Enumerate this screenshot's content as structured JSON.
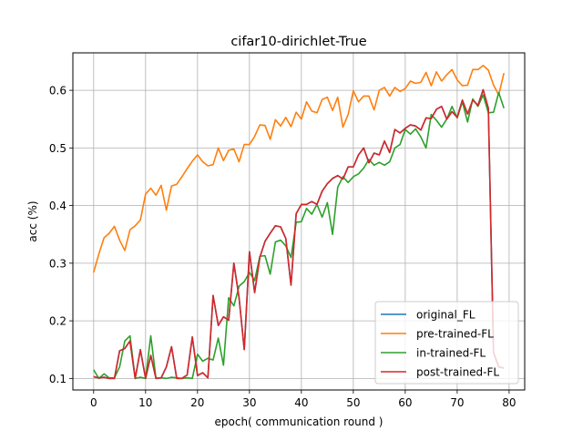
{
  "chart_data": {
    "type": "line",
    "title": "cifar10-dirichlet-True",
    "xlabel": "epoch( communication round )",
    "ylabel": "acc (%)",
    "xlim": [
      -4,
      83
    ],
    "ylim": [
      0.08,
      0.665
    ],
    "xticks": [
      0,
      10,
      20,
      30,
      40,
      50,
      60,
      70,
      80
    ],
    "yticks": [
      0.1,
      0.2,
      0.3,
      0.4,
      0.5,
      0.6
    ],
    "ytick_labels": [
      "0.1",
      "0.2",
      "0.3",
      "0.4",
      "0.5",
      "0.6"
    ],
    "grid": true,
    "legend_position": "lower-right",
    "series": [
      {
        "name": "original_FL",
        "color": "#1f77b4",
        "values": [
          0.103,
          0.101,
          0.102,
          0.1,
          0.1,
          0.148,
          0.152,
          0.165,
          0.1,
          0.15,
          0.1,
          0.14,
          0.1,
          0.101,
          0.12,
          0.155,
          0.1,
          0.1,
          0.106,
          0.172,
          0.105,
          0.11,
          0.101,
          0.244,
          0.192,
          0.207,
          0.201,
          0.3,
          0.24,
          0.15,
          0.32,
          0.249,
          0.31,
          0.338,
          0.352,
          0.365,
          0.363,
          0.343,
          0.262,
          0.386,
          0.402,
          0.402,
          0.407,
          0.402,
          0.425,
          0.438,
          0.447,
          0.452,
          0.446,
          0.467,
          0.467,
          0.488,
          0.5,
          0.474,
          0.491,
          0.488,
          0.512,
          0.492,
          0.532,
          0.526,
          0.534,
          0.54,
          0.538,
          0.531,
          0.552,
          0.551,
          0.567,
          0.572,
          0.55,
          0.563,
          0.553,
          0.583,
          0.559,
          0.583,
          0.574,
          0.601,
          0.569,
          0.145,
          0.12,
          0.118
        ]
      },
      {
        "name": "pre-trained-FL",
        "color": "#ff7f0e",
        "values": [
          0.284,
          0.316,
          0.344,
          0.352,
          0.364,
          0.34,
          0.322,
          0.358,
          0.365,
          0.375,
          0.42,
          0.43,
          0.418,
          0.435,
          0.392,
          0.434,
          0.437,
          0.45,
          0.464,
          0.477,
          0.488,
          0.476,
          0.469,
          0.471,
          0.5,
          0.478,
          0.496,
          0.498,
          0.476,
          0.506,
          0.506,
          0.52,
          0.54,
          0.539,
          0.515,
          0.549,
          0.538,
          0.553,
          0.537,
          0.562,
          0.55,
          0.58,
          0.564,
          0.561,
          0.584,
          0.588,
          0.565,
          0.588,
          0.536,
          0.558,
          0.599,
          0.58,
          0.59,
          0.59,
          0.566,
          0.6,
          0.605,
          0.59,
          0.605,
          0.598,
          0.603,
          0.616,
          0.612,
          0.614,
          0.631,
          0.608,
          0.632,
          0.616,
          0.627,
          0.636,
          0.618,
          0.608,
          0.609,
          0.636,
          0.636,
          0.643,
          0.635,
          0.609,
          0.592,
          0.63
        ]
      },
      {
        "name": "in-trained-FL",
        "color": "#2ca02c",
        "values": [
          0.115,
          0.1,
          0.108,
          0.101,
          0.101,
          0.12,
          0.165,
          0.174,
          0.1,
          0.102,
          0.1,
          0.174,
          0.1,
          0.101,
          0.1,
          0.102,
          0.101,
          0.1,
          0.101,
          0.1,
          0.142,
          0.13,
          0.135,
          0.132,
          0.17,
          0.123,
          0.24,
          0.226,
          0.26,
          0.268,
          0.284,
          0.27,
          0.312,
          0.313,
          0.281,
          0.337,
          0.34,
          0.33,
          0.31,
          0.371,
          0.372,
          0.395,
          0.385,
          0.402,
          0.38,
          0.405,
          0.35,
          0.432,
          0.45,
          0.44,
          0.45,
          0.455,
          0.465,
          0.48,
          0.47,
          0.475,
          0.47,
          0.476,
          0.5,
          0.506,
          0.532,
          0.524,
          0.533,
          0.519,
          0.5,
          0.558,
          0.548,
          0.536,
          0.55,
          0.572,
          0.552,
          0.58,
          0.545,
          0.585,
          0.572,
          0.592,
          0.561,
          0.562,
          0.596,
          0.569
        ]
      },
      {
        "name": "post-trained-FL",
        "color": "#d62728",
        "values": [
          0.103,
          0.101,
          0.102,
          0.1,
          0.1,
          0.148,
          0.152,
          0.165,
          0.1,
          0.15,
          0.1,
          0.14,
          0.1,
          0.101,
          0.12,
          0.155,
          0.1,
          0.1,
          0.106,
          0.172,
          0.105,
          0.11,
          0.101,
          0.244,
          0.192,
          0.207,
          0.201,
          0.3,
          0.24,
          0.15,
          0.32,
          0.249,
          0.31,
          0.338,
          0.352,
          0.365,
          0.363,
          0.343,
          0.262,
          0.386,
          0.402,
          0.402,
          0.407,
          0.402,
          0.425,
          0.438,
          0.447,
          0.452,
          0.446,
          0.467,
          0.467,
          0.488,
          0.5,
          0.474,
          0.491,
          0.488,
          0.512,
          0.492,
          0.532,
          0.526,
          0.534,
          0.54,
          0.538,
          0.531,
          0.552,
          0.551,
          0.567,
          0.572,
          0.55,
          0.563,
          0.553,
          0.583,
          0.559,
          0.583,
          0.574,
          0.601,
          0.569,
          0.145,
          0.12,
          0.118
        ]
      }
    ]
  }
}
